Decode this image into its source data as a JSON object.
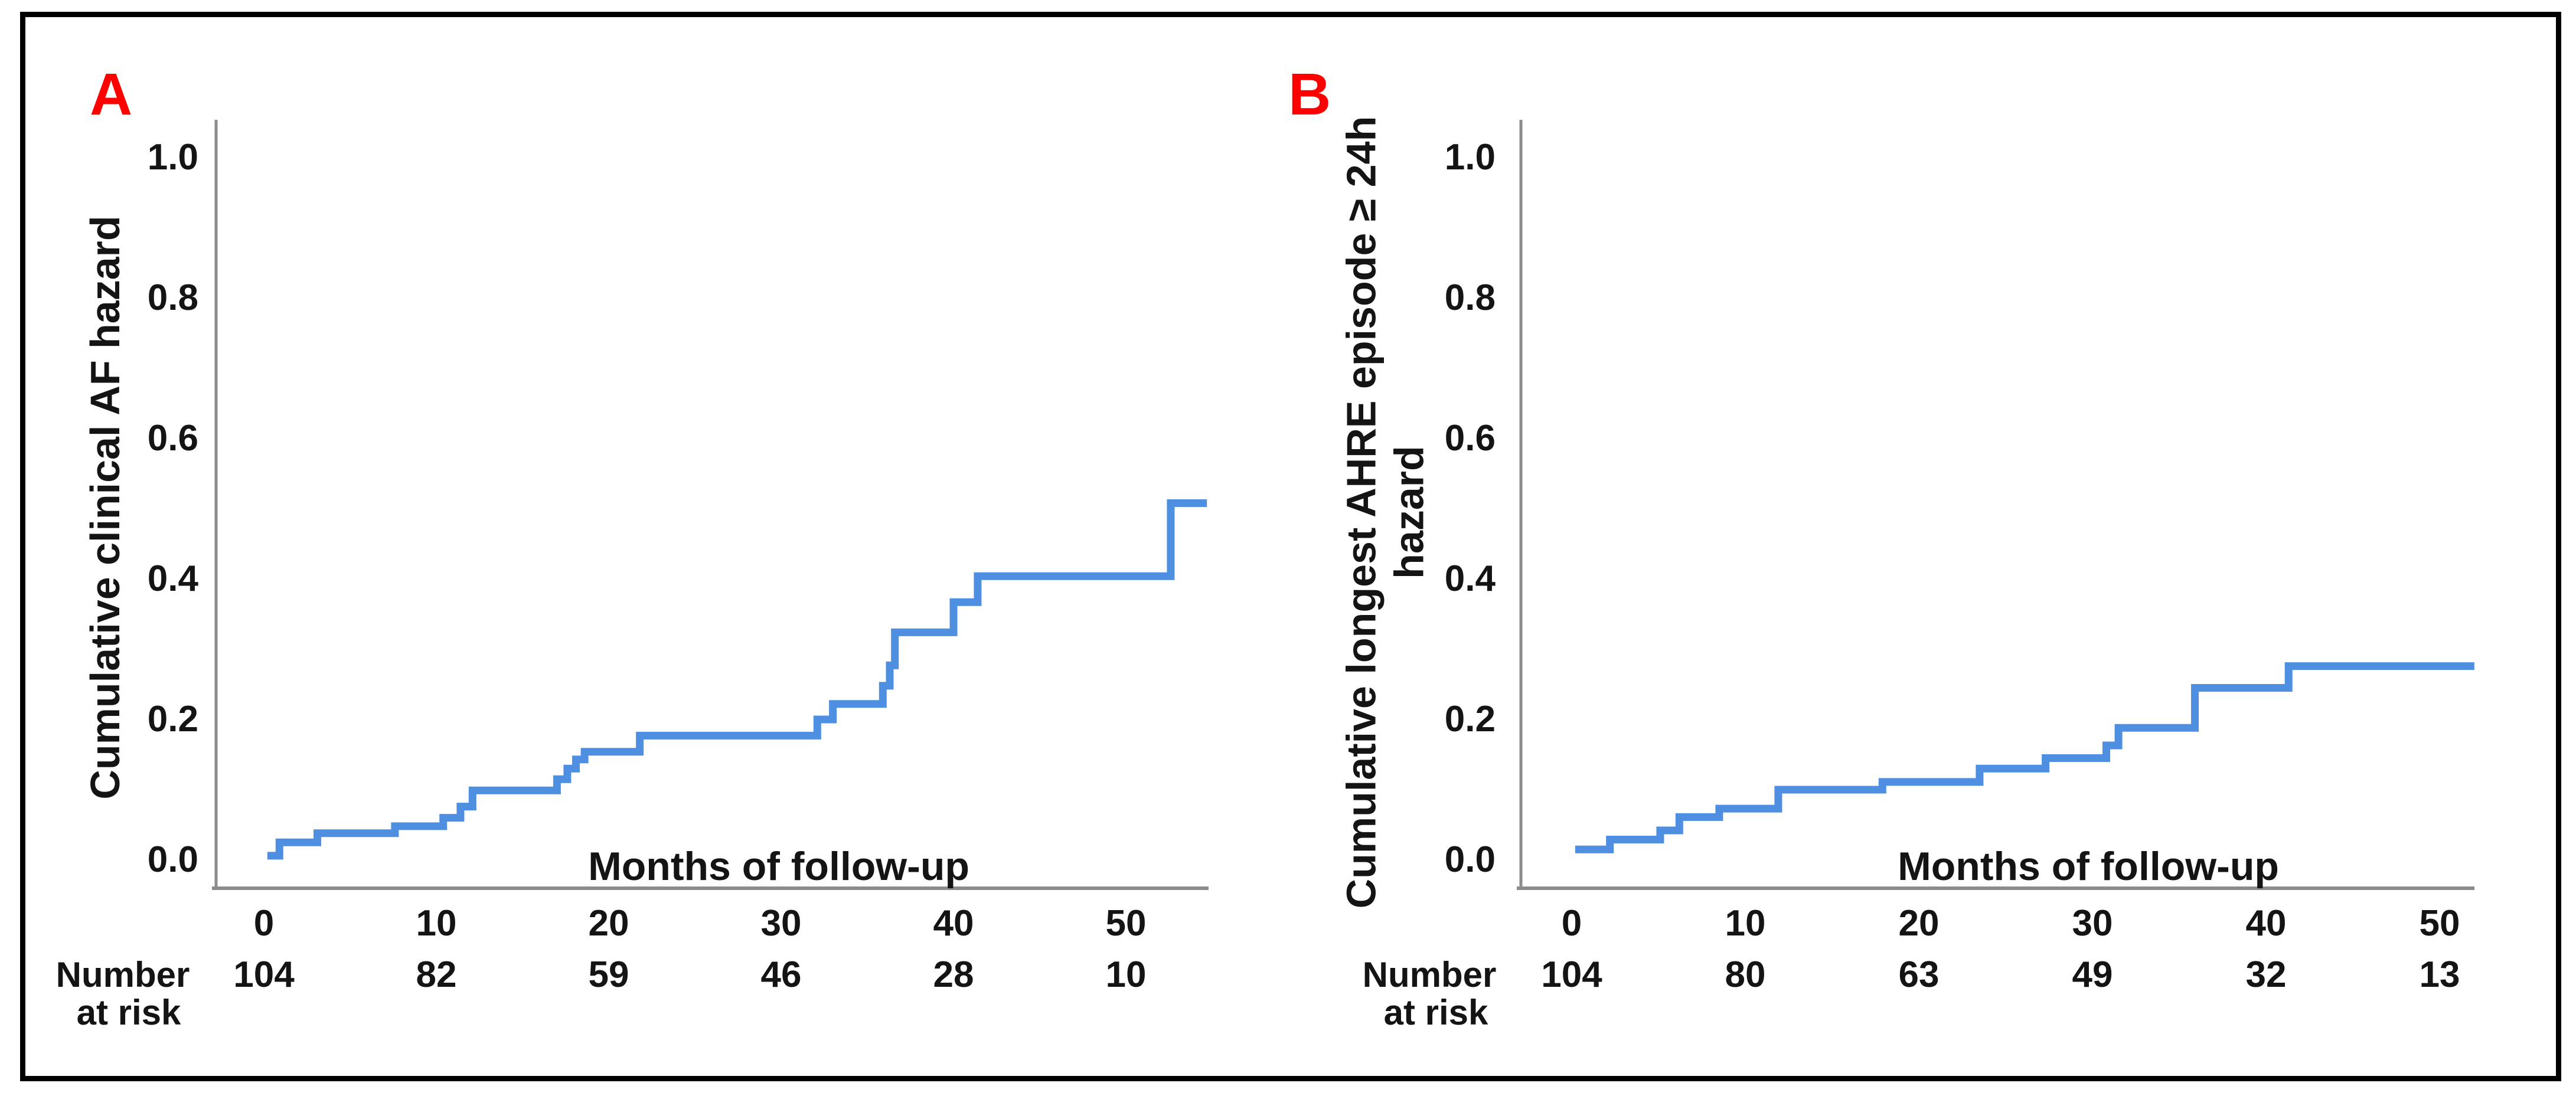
{
  "figure": {
    "colors": {
      "background": "#ffffff",
      "border": "#000000",
      "curve": "#4e8fe2",
      "axis": "#8c8c8c",
      "text": "#141414",
      "panel_letter": "#ff0000"
    }
  },
  "chart_data": [
    {
      "type": "line",
      "subtype": "step-cumulative-hazard",
      "panel": "A",
      "title": "",
      "ylabel_lines": [
        "Cumulative clinical AF hazard"
      ],
      "xlabel": "Months of follow-up",
      "xticks": [
        "0",
        "10",
        "20",
        "30",
        "40",
        "50"
      ],
      "yticks": [
        "0.0",
        "0.2",
        "0.4",
        "0.6",
        "0.8",
        "1.0"
      ],
      "xlim": [
        0,
        55
      ],
      "ylim": [
        0,
        1.05
      ],
      "grid": false,
      "legend_position": "none",
      "steps": [
        [
          0.2,
          0.006
        ],
        [
          0.9,
          0.025
        ],
        [
          3.1,
          0.038
        ],
        [
          7.6,
          0.048
        ],
        [
          10.4,
          0.06
        ],
        [
          11.4,
          0.076
        ],
        [
          12.1,
          0.099
        ],
        [
          17.0,
          0.115
        ],
        [
          17.6,
          0.13
        ],
        [
          18.1,
          0.143
        ],
        [
          18.6,
          0.154
        ],
        [
          21.8,
          0.177
        ],
        [
          32.1,
          0.2
        ],
        [
          33.0,
          0.222
        ],
        [
          35.9,
          0.248
        ],
        [
          36.3,
          0.277
        ],
        [
          36.6,
          0.324
        ],
        [
          40.0,
          0.367
        ],
        [
          41.4,
          0.404
        ],
        [
          52.6,
          0.508
        ]
      ],
      "end_month": 54.7,
      "number_at_risk_label_lines": [
        "Number",
        "at risk"
      ],
      "number_at_risk": [
        "104",
        "82",
        "59",
        "46",
        "28",
        "10"
      ]
    },
    {
      "type": "line",
      "subtype": "step-cumulative-hazard",
      "panel": "B",
      "title": "",
      "ylabel_lines": [
        "Cumulative longest AHRE episode ≥ 24h",
        "hazard"
      ],
      "xlabel": "Months of follow-up",
      "xticks": [
        "0",
        "10",
        "20",
        "30",
        "40",
        "50"
      ],
      "yticks": [
        "0.0",
        "0.2",
        "0.4",
        "0.6",
        "0.8",
        "1.0"
      ],
      "xlim": [
        0,
        52
      ],
      "ylim": [
        0,
        1.05
      ],
      "grid": false,
      "legend_position": "none",
      "steps": [
        [
          0.2,
          0.015
        ],
        [
          2.2,
          0.029
        ],
        [
          5.1,
          0.042
        ],
        [
          6.2,
          0.061
        ],
        [
          8.5,
          0.073
        ],
        [
          11.9,
          0.1
        ],
        [
          17.9,
          0.111
        ],
        [
          23.5,
          0.13
        ],
        [
          27.3,
          0.145
        ],
        [
          30.8,
          0.163
        ],
        [
          31.5,
          0.188
        ],
        [
          35.9,
          0.245
        ],
        [
          41.3,
          0.276
        ]
      ],
      "end_month": 52.0,
      "number_at_risk_label_lines": [
        "Number",
        "at risk"
      ],
      "number_at_risk": [
        "104",
        "80",
        "63",
        "49",
        "32",
        "13"
      ]
    }
  ]
}
